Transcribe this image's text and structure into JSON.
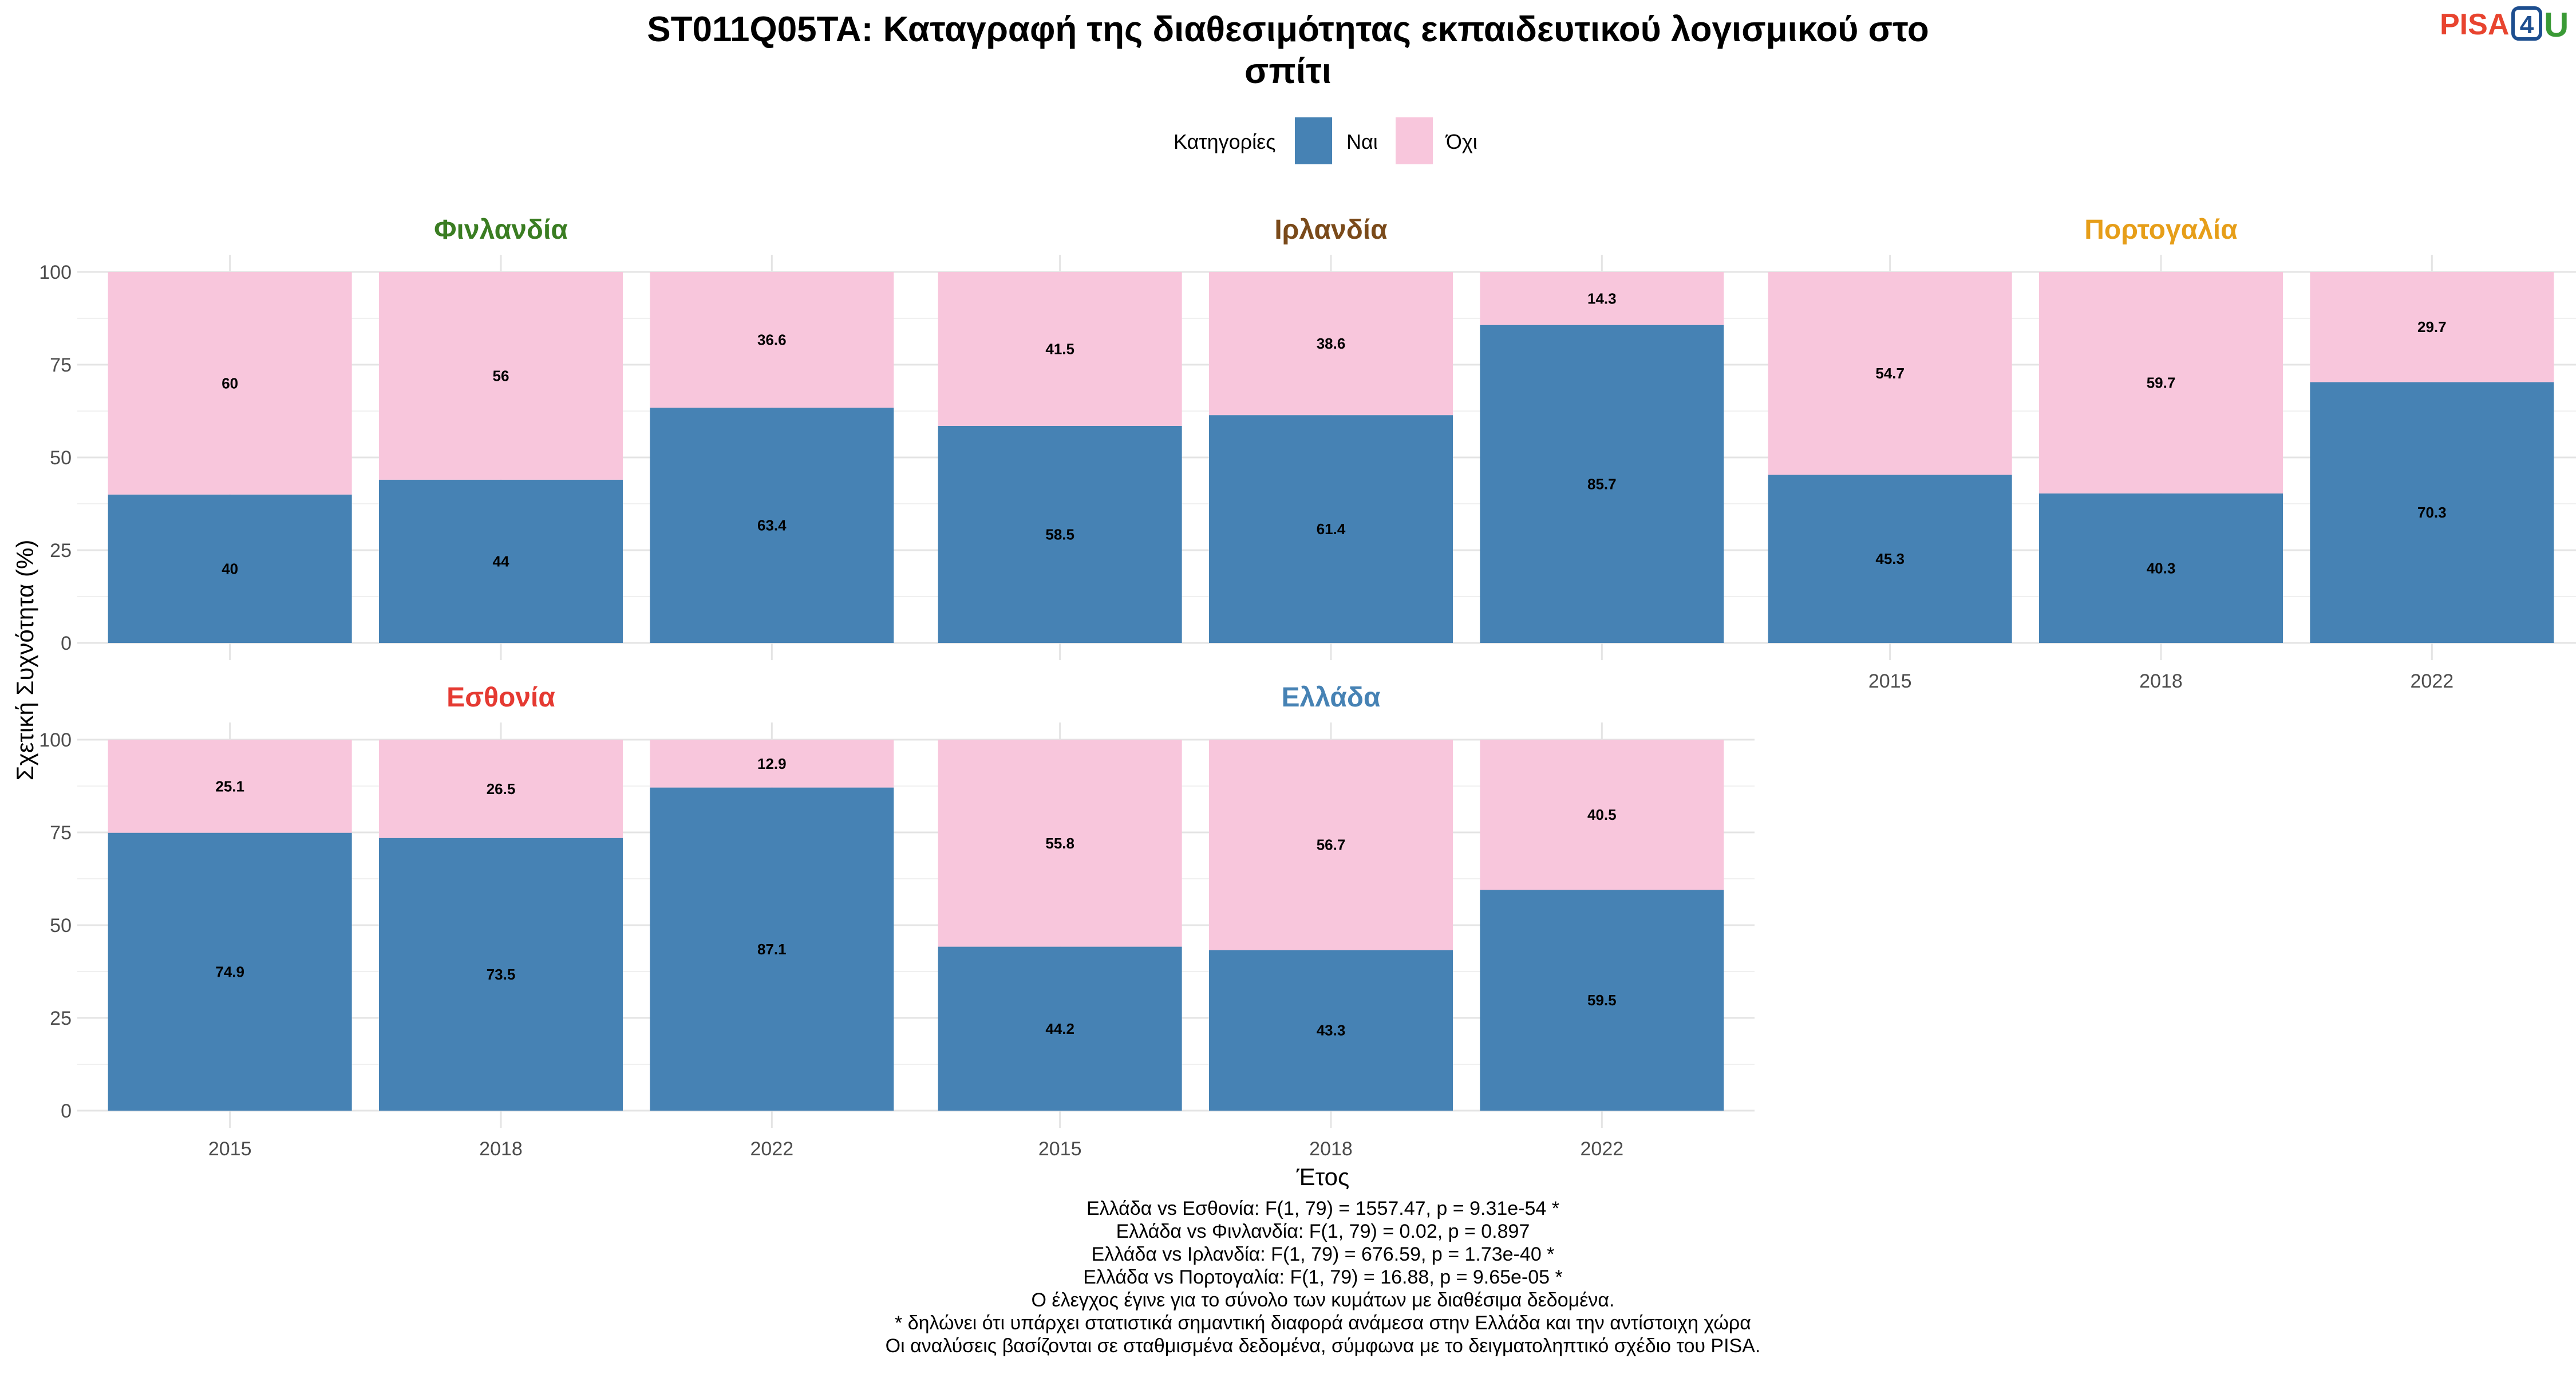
{
  "title_line1": "ST011Q05TA: Καταγραφή της διαθεσιμότητας εκπαιδευτικού λογισμικού στο",
  "title_line2": "σπίτι",
  "logo": {
    "text": "PISA",
    "digit": "4",
    "letter": "U"
  },
  "legend": {
    "title": "Κατηγορίες",
    "items": [
      {
        "label": "Ναι",
        "color": "#4682b4"
      },
      {
        "label": "Όχι",
        "color": "#f8c6dc"
      }
    ]
  },
  "chart_data": {
    "type": "bar",
    "stacked": true,
    "xlabel": "Έτος",
    "ylabel": "Σχετική Συχνότητα (%)",
    "ylim": [
      0,
      100
    ],
    "yticks": [
      0,
      25,
      50,
      75,
      100
    ],
    "categories": [
      "2015",
      "2018",
      "2022"
    ],
    "panels": [
      {
        "name": "Φινλανδία",
        "color": "#3a7d22",
        "series": [
          {
            "name": "Ναι",
            "values": [
              40,
              44,
              63.4
            ]
          },
          {
            "name": "Όχι",
            "values": [
              60,
              56,
              36.6
            ]
          }
        ]
      },
      {
        "name": "Ιρλανδία",
        "color": "#7a4a1a",
        "series": [
          {
            "name": "Ναι",
            "values": [
              58.5,
              61.4,
              85.7
            ]
          },
          {
            "name": "Όχι",
            "values": [
              41.5,
              38.6,
              14.3
            ]
          }
        ]
      },
      {
        "name": "Πορτογαλία",
        "color": "#e69e19",
        "series": [
          {
            "name": "Ναι",
            "values": [
              45.3,
              40.3,
              70.3
            ]
          },
          {
            "name": "Όχι",
            "values": [
              54.7,
              59.7,
              29.7
            ]
          }
        ]
      },
      {
        "name": "Εσθονία",
        "color": "#e53a32",
        "series": [
          {
            "name": "Ναι",
            "values": [
              74.9,
              73.5,
              87.1
            ]
          },
          {
            "name": "Όχι",
            "values": [
              25.1,
              26.5,
              12.9
            ]
          }
        ]
      },
      {
        "name": "Ελλάδα",
        "color": "#4682b4",
        "series": [
          {
            "name": "Ναι",
            "values": [
              44.2,
              43.3,
              59.5
            ]
          },
          {
            "name": "Όχι",
            "values": [
              55.8,
              56.7,
              40.5
            ]
          }
        ]
      }
    ]
  },
  "notes": [
    "Ελλάδα vs Εσθονία: F(1, 79) = 1557.47, p = 9.31e-54 *",
    "Ελλάδα vs Φινλανδία: F(1, 79) = 0.02, p = 0.897",
    "Ελλάδα vs Ιρλανδία: F(1, 79) = 676.59, p = 1.73e-40 *",
    "Ελλάδα vs Πορτογαλία: F(1, 79) = 16.88, p = 9.65e-05 *",
    "Ο έλεγχος έγινε για το σύνολο των κυμάτων με διαθέσιμα δεδομένα.",
    "* δηλώνει ότι υπάρχει στατιστικά σημαντική διαφορά ανάμεσα στην Ελλάδα και την αντίστοιχη χώρα",
    "Οι αναλύσεις βασίζονται σε σταθμισμένα δεδομένα, σύμφωνα με το δειγματοληπτικό σχέδιο του PISA."
  ]
}
